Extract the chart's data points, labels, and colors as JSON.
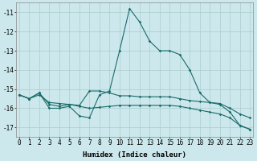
{
  "xlabel": "Humidex (Indice chaleur)",
  "xlim": [
    -0.3,
    23.3
  ],
  "ylim": [
    -17.5,
    -10.5
  ],
  "yticks": [
    -17,
    -16,
    -15,
    -14,
    -13,
    -12,
    -11
  ],
  "xticks": [
    0,
    1,
    2,
    3,
    4,
    5,
    6,
    7,
    8,
    9,
    10,
    11,
    12,
    13,
    14,
    15,
    16,
    17,
    18,
    19,
    20,
    21,
    22,
    23
  ],
  "bg_color": "#cce8ec",
  "grid_color": "#aacccc",
  "line_color": "#1a6b6b",
  "curve1": [
    -15.3,
    -15.5,
    -15.2,
    -16.0,
    -16.0,
    -15.9,
    -16.4,
    -16.5,
    -15.3,
    -15.1,
    -13.0,
    -10.8,
    -11.5,
    -12.5,
    -13.0,
    -13.0,
    -13.2,
    -14.0,
    -15.2,
    -15.7,
    -15.8,
    -16.2,
    -16.9,
    -17.1
  ],
  "curve2": [
    -15.3,
    -15.5,
    -15.2,
    -15.8,
    -15.9,
    -15.8,
    -15.85,
    -15.1,
    -15.1,
    -15.2,
    -15.35,
    -15.35,
    -15.4,
    -15.4,
    -15.4,
    -15.4,
    -15.5,
    -15.6,
    -15.65,
    -15.7,
    -15.75,
    -16.0,
    -16.3,
    -16.5
  ],
  "curve3": [
    -15.3,
    -15.5,
    -15.3,
    -15.7,
    -15.75,
    -15.8,
    -15.9,
    -16.0,
    -15.95,
    -15.9,
    -15.85,
    -15.85,
    -15.85,
    -15.85,
    -15.85,
    -15.85,
    -15.9,
    -16.0,
    -16.1,
    -16.2,
    -16.3,
    -16.5,
    -16.9,
    -17.1
  ],
  "fontsize_label": 6.5,
  "fontsize_tick": 5.5
}
